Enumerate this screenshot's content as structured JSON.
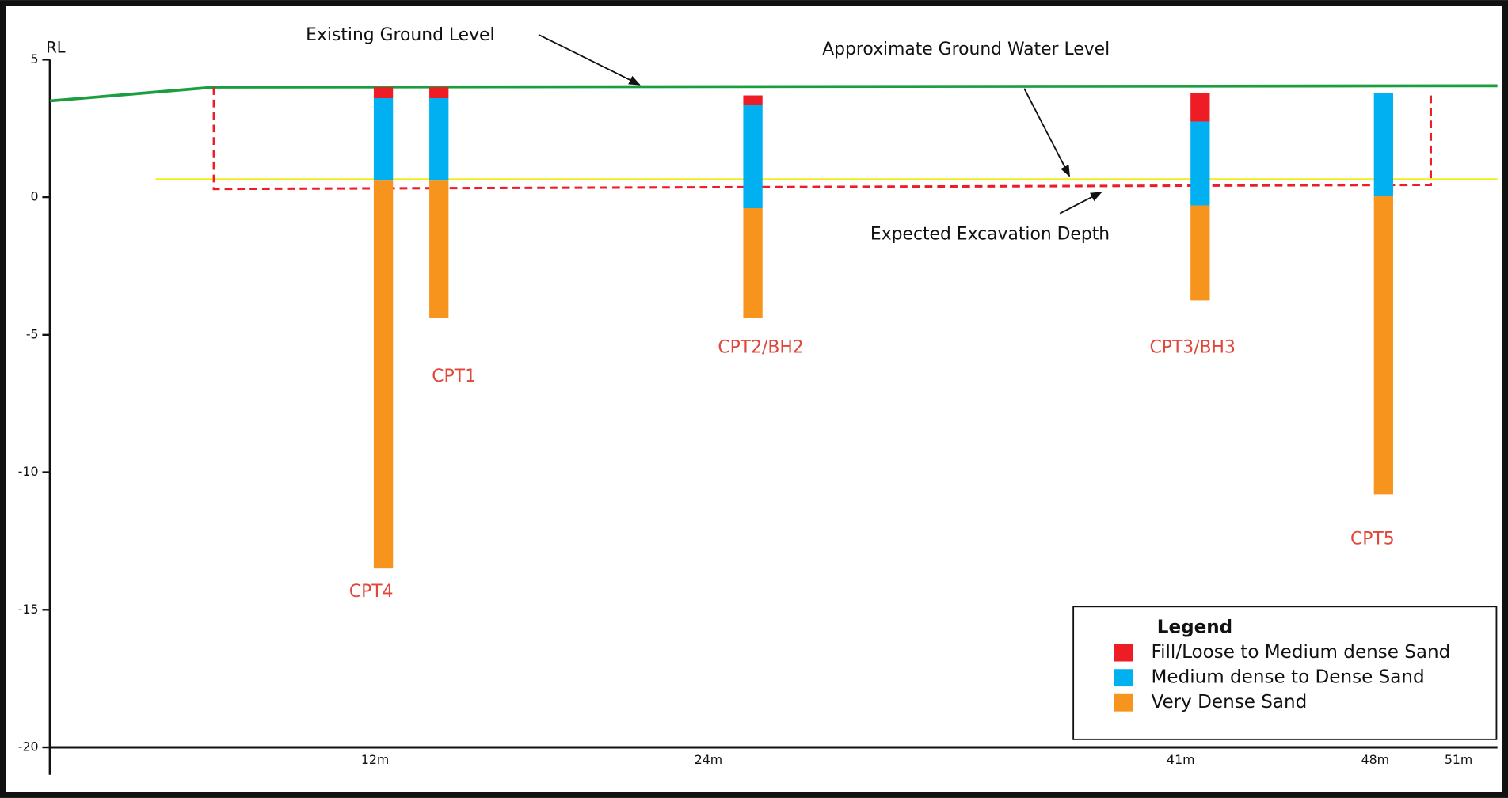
{
  "chart_data": {
    "type": "borehole",
    "y_label": "RL",
    "categories": [
      "CPT4",
      "CPT1",
      "CPT2/BH2",
      "CPT3/BH3",
      "CPT5"
    ],
    "x": [
      12.3,
      14.3,
      25.6,
      41.7,
      48.3
    ],
    "top": [
      4.0,
      4.0,
      3.7,
      3.8,
      3.8
    ],
    "series": [
      {
        "name": "Fill/Loose to Medium dense Sand",
        "color": "#ee1c25",
        "values": [
          0.4,
          0.4,
          0.35,
          1.05,
          0
        ]
      },
      {
        "name": "Medium dense to Dense Sand",
        "color": "#00b0f0",
        "values": [
          3.0,
          3.0,
          3.75,
          3.05,
          3.75
        ]
      },
      {
        "name": "Very Dense Sand",
        "color": "#f7941d",
        "values": [
          14.1,
          5.0,
          4.0,
          3.45,
          10.85
        ]
      }
    ],
    "lines": [
      {
        "label": "Existing Ground Level",
        "color": "#1a9e3f",
        "dashed": false,
        "x": [
          0.3,
          6.2,
          52.4
        ],
        "y": [
          3.5,
          4.0,
          4.05
        ]
      },
      {
        "label": "Approximate Ground Water Level",
        "color": "#f2ee1a",
        "dashed": false,
        "x": [
          4.1,
          52.4
        ],
        "y": [
          0.65,
          0.65
        ]
      },
      {
        "label": "Expected Excavation Depth",
        "color": "#ee1c25",
        "dashed": true,
        "x": [
          6.2,
          6.2,
          50.0,
          50.0
        ],
        "y": [
          4.0,
          0.3,
          0.45,
          3.85
        ]
      }
    ],
    "legend_title": "Legend",
    "legend_position": "lower right",
    "xlim": [
      0.3,
      52.4
    ],
    "ylim": [
      -21,
      5
    ],
    "xticks": [
      {
        "value": 12,
        "label": "12m"
      },
      {
        "value": 24,
        "label": "24m"
      },
      {
        "value": 41,
        "label": "41m"
      },
      {
        "value": 48,
        "label": "48m"
      },
      {
        "value": 51,
        "label": "51m"
      }
    ],
    "yticks": [
      5,
      0,
      -5,
      -10,
      -15,
      -20
    ]
  }
}
